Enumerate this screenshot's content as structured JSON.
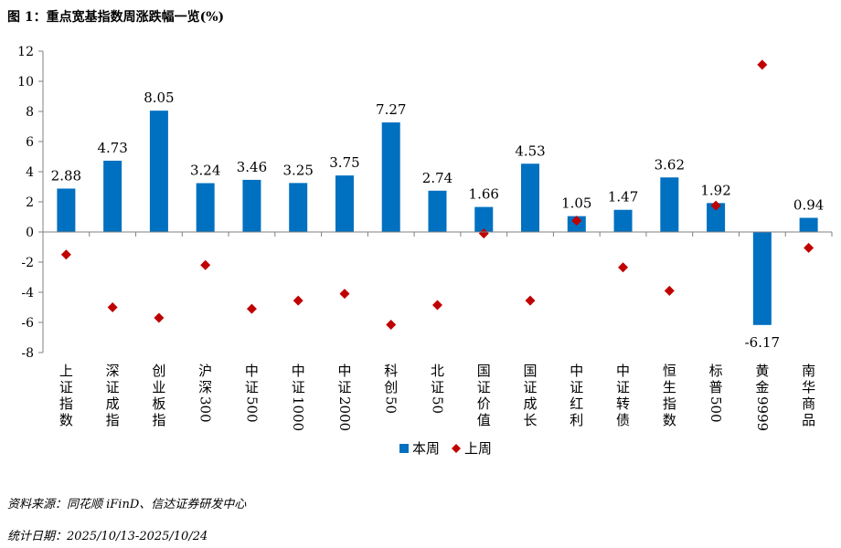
{
  "figure_title": "图 1：重点宽基指数周涨跌幅一览(%)",
  "source": "资料来源：同花顺 iFinD、信达证券研发中心",
  "date_range": "统计日期：2025/10/13-2025/10/24",
  "colors": {
    "bar": "#0070C0",
    "marker": "#C00000",
    "axis": "#808080"
  },
  "chart_data": {
    "type": "bar",
    "title": "重点宽基指数周涨跌幅一览(%)",
    "xlabel": "",
    "ylabel": "",
    "ylim": [
      -8,
      12
    ],
    "yticks": [
      -8,
      -6,
      -4,
      -2,
      0,
      2,
      4,
      6,
      8,
      10,
      12
    ],
    "categories": [
      "上证指数",
      "深证成指",
      "创业板指",
      "沪深300",
      "中证500",
      "中证1000",
      "中证2000",
      "科创50",
      "北证50",
      "国证价值",
      "国证成长",
      "中证红利",
      "中证转债",
      "恒生指数",
      "标普500",
      "黄金9999",
      "南华商品"
    ],
    "series": [
      {
        "name": "本周",
        "type": "bar",
        "values": [
          2.88,
          4.73,
          8.05,
          3.24,
          3.46,
          3.25,
          3.75,
          7.27,
          2.74,
          1.66,
          4.53,
          1.05,
          1.47,
          3.62,
          1.92,
          -6.17,
          0.94
        ]
      },
      {
        "name": "上周",
        "type": "scatter",
        "values": [
          -1.5,
          -5.0,
          -5.7,
          -2.2,
          -5.1,
          -4.55,
          -4.1,
          -6.15,
          -4.85,
          -0.1,
          -4.55,
          0.75,
          -2.35,
          -3.9,
          1.75,
          11.1,
          -1.05
        ]
      }
    ],
    "data_labels": [
      "2.88",
      "4.73",
      "8.05",
      "3.24",
      "3.46",
      "3.25",
      "3.75",
      "7.27",
      "2.74",
      "1.66",
      "4.53",
      "1.05",
      "1.47",
      "3.62",
      "1.92",
      "-6.17",
      "0.94"
    ],
    "legend": {
      "position": "bottom",
      "entries": [
        "本周",
        "上周"
      ]
    },
    "grid": false
  }
}
